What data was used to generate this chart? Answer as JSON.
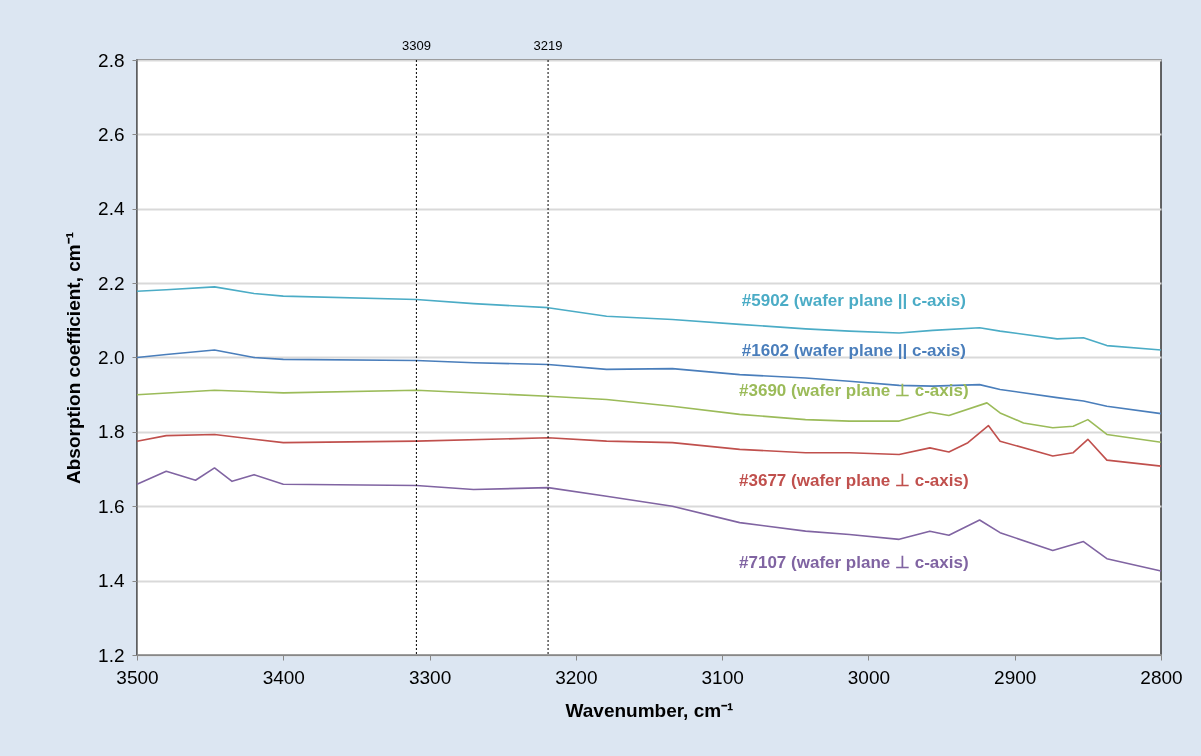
{
  "chart_data": {
    "type": "line",
    "xlabel": "Wavenumber, cm⁻¹",
    "ylabel": "Absorption coefficient, cm⁻¹",
    "xlim": [
      3500,
      2800
    ],
    "xticks": [
      3500,
      3400,
      3300,
      3200,
      3100,
      3000,
      2900,
      2800
    ],
    "ylim": [
      1.2,
      2.8
    ],
    "yticks": [
      1.2,
      1.4,
      1.6,
      1.8,
      {
        "value": 2,
        "label": "2.0"
      },
      2.2,
      2.4,
      2.6,
      2.8
    ],
    "grid": "y",
    "series": [
      {
        "name": "#5902 (wafer plane || c-axis)",
        "color": "#4bacc6",
        "x": [
          3500,
          3480,
          3447,
          3420,
          3400,
          3309,
          3270,
          3219,
          3179,
          3134,
          3088,
          3043,
          3013,
          2979,
          2956,
          2924,
          2910,
          2871,
          2853,
          2837,
          2800
        ],
        "values": [
          2.178,
          2.182,
          2.19,
          2.172,
          2.165,
          2.156,
          2.145,
          2.134,
          2.111,
          2.102,
          2.089,
          2.077,
          2.071,
          2.066,
          2.073,
          2.08,
          2.071,
          2.05,
          2.053,
          2.032,
          2.02
        ]
      },
      {
        "name": "#1602 (wafer plane || c-axis)",
        "color": "#4a7ebb",
        "x": [
          3500,
          3480,
          3447,
          3420,
          3400,
          3309,
          3270,
          3219,
          3179,
          3134,
          3088,
          3043,
          3013,
          2979,
          2956,
          2924,
          2910,
          2871,
          2853,
          2837,
          2800
        ],
        "values": [
          2.0,
          2.008,
          2.02,
          2.0,
          1.995,
          1.992,
          1.986,
          1.981,
          1.968,
          1.97,
          1.954,
          1.945,
          1.936,
          1.925,
          1.923,
          1.927,
          1.914,
          1.892,
          1.883,
          1.869,
          1.849
        ]
      },
      {
        "name": "#3690 (wafer plane ⊥ c-axis)",
        "color": "#9bbb59",
        "x": [
          3500,
          3447,
          3400,
          3309,
          3219,
          3179,
          3134,
          3088,
          3043,
          3013,
          2979,
          2958,
          2945,
          2919,
          2910,
          2894,
          2874,
          2860,
          2850,
          2837,
          2800
        ],
        "values": [
          1.9,
          1.912,
          1.905,
          1.912,
          1.896,
          1.887,
          1.869,
          1.847,
          1.833,
          1.829,
          1.829,
          1.853,
          1.844,
          1.878,
          1.851,
          1.824,
          1.811,
          1.815,
          1.833,
          1.793,
          1.772
        ]
      },
      {
        "name": "#3677 (wafer plane ⊥ c-axis)",
        "color": "#c0504d",
        "x": [
          3500,
          3480,
          3447,
          3420,
          3400,
          3309,
          3219,
          3179,
          3134,
          3088,
          3043,
          3013,
          2979,
          2958,
          2945,
          2932,
          2918,
          2910,
          2874,
          2860,
          2850,
          2837,
          2800
        ],
        "values": [
          1.775,
          1.79,
          1.793,
          1.78,
          1.771,
          1.775,
          1.784,
          1.775,
          1.771,
          1.753,
          1.744,
          1.744,
          1.739,
          1.757,
          1.746,
          1.771,
          1.817,
          1.775,
          1.735,
          1.744,
          1.78,
          1.724,
          1.708
        ]
      },
      {
        "name": "#7107 (wafer plane ⊥  c-axis)",
        "color": "#8064a2",
        "x": [
          3500,
          3480,
          3460,
          3447,
          3435,
          3420,
          3400,
          3309,
          3270,
          3219,
          3179,
          3134,
          3088,
          3043,
          3013,
          2979,
          2958,
          2945,
          2924,
          2910,
          2874,
          2853,
          2837,
          2800
        ],
        "values": [
          1.659,
          1.694,
          1.67,
          1.703,
          1.667,
          1.685,
          1.659,
          1.656,
          1.645,
          1.65,
          1.627,
          1.6,
          1.556,
          1.533,
          1.524,
          1.511,
          1.533,
          1.522,
          1.563,
          1.529,
          1.481,
          1.505,
          1.459,
          1.426
        ]
      }
    ],
    "ref_lines": [
      {
        "axis": "x",
        "value": 3309,
        "label": "3309",
        "color": "#000000",
        "line_style": "dotted"
      },
      {
        "axis": "x",
        "value": 3219,
        "label": "3219",
        "color": "#000000",
        "line_style": "dotted"
      }
    ]
  }
}
